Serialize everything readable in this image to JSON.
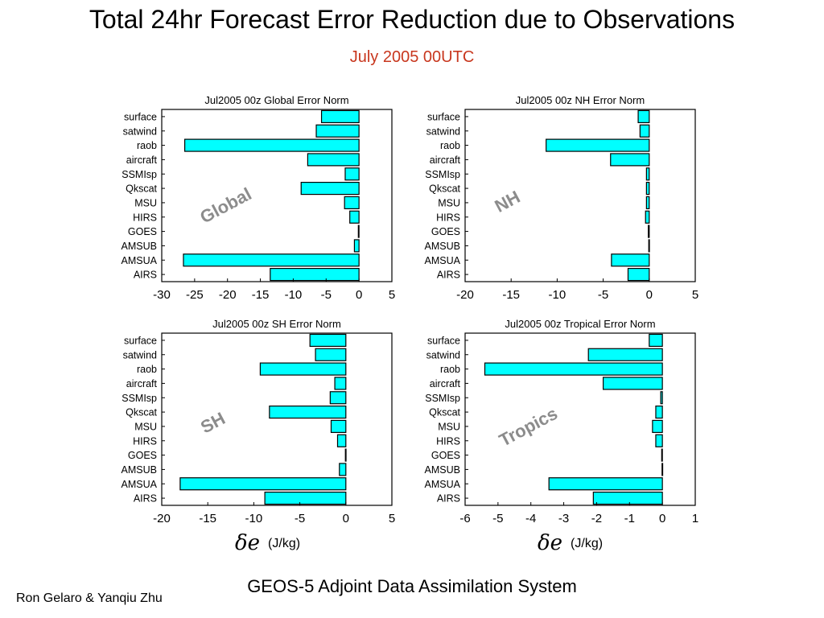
{
  "title": "Total 24hr Forecast Error Reduction due to Observations",
  "subtitle": "July 2005  00UTC",
  "footer": "GEOS-5 Adjoint Data Assimilation System",
  "authors": "Ron Gelaro & Yanqiu Zhu",
  "units": [
    {
      "symbol": "δe",
      "label": "(J/kg)"
    },
    {
      "symbol": "δe",
      "label": "(J/kg)"
    }
  ],
  "colors": {
    "bar": "#00ffff",
    "overlay": "#8c8c8c"
  },
  "chart_data": [
    {
      "type": "bar",
      "orientation": "horizontal",
      "title": "Jul2005 00z Global Error Norm",
      "overlay_label": "Global",
      "categories": [
        "surface",
        "satwind",
        "raob",
        "aircraft",
        "SSMIsp",
        "Qkscat",
        "MSU",
        "HIRS",
        "GOES",
        "AMSUB",
        "AMSUA",
        "AIRS"
      ],
      "values": [
        -5.7,
        -6.5,
        -26.5,
        -7.8,
        -2.1,
        -8.8,
        -2.2,
        -1.4,
        -0.1,
        -0.7,
        -26.7,
        -13.5
      ],
      "xlim": [
        -30,
        5
      ],
      "xticks": [
        -30,
        -25,
        -20,
        -15,
        -10,
        -5,
        0,
        5
      ]
    },
    {
      "type": "bar",
      "orientation": "horizontal",
      "title": "Jul2005 00z NH Error Norm",
      "overlay_label": "NH",
      "categories": [
        "surface",
        "satwind",
        "raob",
        "aircraft",
        "SSMIsp",
        "Qkscat",
        "MSU",
        "HIRS",
        "GOES",
        "AMSUB",
        "AMSUA",
        "AIRS"
      ],
      "values": [
        -1.2,
        -1.0,
        -11.2,
        -4.2,
        -0.3,
        -0.3,
        -0.3,
        -0.4,
        -0.1,
        -0.05,
        -4.1,
        -2.3
      ],
      "xlim": [
        -20,
        5
      ],
      "xticks": [
        -20,
        -15,
        -10,
        -5,
        0,
        5
      ]
    },
    {
      "type": "bar",
      "orientation": "horizontal",
      "title": "Jul2005 00z SH Error Norm",
      "overlay_label": "SH",
      "categories": [
        "surface",
        "satwind",
        "raob",
        "aircraft",
        "SSMIsp",
        "Qkscat",
        "MSU",
        "HIRS",
        "GOES",
        "AMSUB",
        "AMSUA",
        "AIRS"
      ],
      "values": [
        -3.9,
        -3.3,
        -9.3,
        -1.2,
        -1.7,
        -8.3,
        -1.6,
        -0.9,
        -0.05,
        -0.7,
        -18.0,
        -8.8
      ],
      "xlim": [
        -20,
        5
      ],
      "xticks": [
        -20,
        -15,
        -10,
        -5,
        0,
        5
      ]
    },
    {
      "type": "bar",
      "orientation": "horizontal",
      "title": "Jul2005 00z Tropical Error Norm",
      "overlay_label": "Tropics",
      "categories": [
        "surface",
        "satwind",
        "raob",
        "aircraft",
        "SSMIsp",
        "Qkscat",
        "MSU",
        "HIRS",
        "GOES",
        "AMSUB",
        "AMSUA",
        "AIRS"
      ],
      "values": [
        -0.4,
        -2.25,
        -5.4,
        -1.8,
        -0.05,
        -0.2,
        -0.3,
        -0.2,
        -0.02,
        -0.01,
        -3.45,
        -2.1
      ],
      "xlim": [
        -6,
        1
      ],
      "xticks": [
        -6,
        -5,
        -4,
        -3,
        -2,
        -1,
        0,
        1
      ]
    }
  ]
}
